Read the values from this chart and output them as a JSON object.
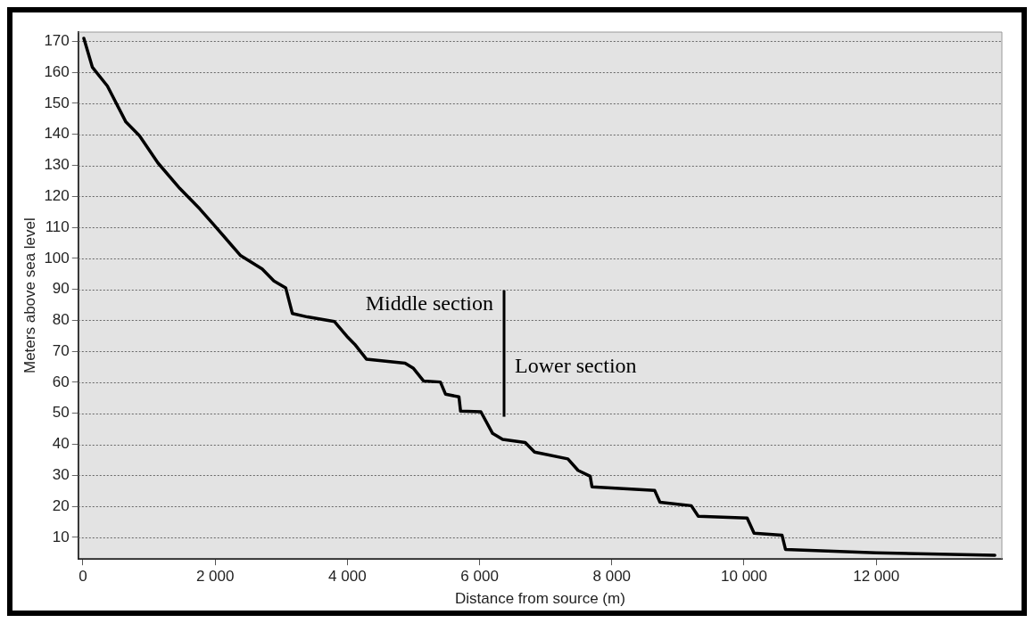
{
  "chart_data": {
    "type": "line",
    "xlabel": "Distance from source (m)",
    "ylabel": "Meters above sea level",
    "x": [
      14,
      142,
      370,
      650,
      855,
      1134,
      1464,
      1770,
      1973,
      2380,
      2711,
      2889,
      3067,
      3168,
      3396,
      3805,
      4008,
      4110,
      4288,
      4873,
      5000,
      5154,
      5407,
      5484,
      5688,
      5712,
      6019,
      6197,
      6349,
      6690,
      6832,
      7335,
      7489,
      7673,
      7700,
      8649,
      8728,
      9202,
      9308,
      10047,
      10152,
      10574,
      10627,
      11998,
      13793
    ],
    "series": [
      {
        "color": "#000000",
        "values": [
          171,
          161.7,
          155.6,
          144,
          139.6,
          130.8,
          122.6,
          115.9,
          111,
          101,
          96.6,
          92.7,
          90.5,
          82.2,
          81.1,
          79.6,
          74.5,
          72.3,
          67.5,
          66.2,
          64.5,
          60.4,
          60.1,
          56.2,
          55.3,
          50.7,
          50.5,
          43.5,
          41.6,
          40.6,
          37.5,
          35.3,
          31.6,
          29.7,
          26.3,
          25.1,
          21.3,
          20.2,
          16.8,
          16.2,
          11.3,
          10.7,
          6.1,
          5,
          4.2
        ]
      }
    ],
    "xlim": [
      -70,
      13900
    ],
    "ylim": [
      3,
      173
    ],
    "xticks": [
      0,
      {
        "value": 2000,
        "label": "2 000"
      },
      {
        "value": 4000,
        "label": "4 000"
      },
      {
        "value": 6000,
        "label": "6 000"
      },
      {
        "value": 8000,
        "label": "8 000"
      },
      {
        "value": 10000,
        "label": "10 000"
      },
      {
        "value": 12000,
        "label": "12 000"
      }
    ],
    "yticks": [
      10,
      20,
      30,
      40,
      50,
      60,
      70,
      80,
      90,
      100,
      110,
      120,
      130,
      140,
      150,
      160,
      170
    ],
    "grid": "y",
    "legend": false,
    "marker": "none",
    "line_style": "solid",
    "ref_lines": [
      {
        "axis": "x",
        "value": 6370,
        "color": "#000000"
      }
    ],
    "annotations": [
      {
        "text": "Middle section",
        "x": 6370,
        "y": 85
      },
      {
        "text": "Lower section",
        "x": 6370,
        "y": 65
      }
    ]
  }
}
